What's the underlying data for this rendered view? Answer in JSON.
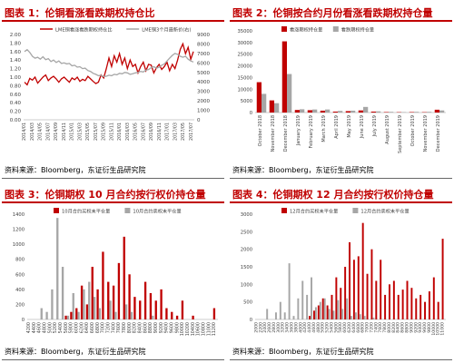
{
  "figures": [
    {
      "title": "图表 1：伦铜看涨看跌期权持仓比"
    },
    {
      "title": "图表 2：伦铜按合约月份看涨看跌期权持仓量"
    },
    {
      "title": "图表 3：伦铜期权 10 月合约按行权价持仓量"
    },
    {
      "title": "图表 4：伦铜期权 12 月合约按行权价持仓量"
    }
  ],
  "source": "资料来源：Bloomberg，东证衍生品研究院",
  "colors": {
    "red": "#C00000",
    "gray": "#A6A6A6",
    "accent": "#C00000"
  },
  "chart_data": [
    {
      "type": "line",
      "series": [
        {
          "name": "LME铜看涨看跌期权持仓比",
          "axis": "left",
          "color": "#C00000",
          "values": [
            0.88,
            0.82,
            0.97,
            0.93,
            1.0,
            0.86,
            0.93,
            1.0,
            1.05,
            0.92,
            0.98,
            1.02,
            0.96,
            0.88,
            0.96,
            1.0,
            0.94,
            0.88,
            0.98,
            0.94,
            1.0,
            0.9,
            0.95,
            0.92,
            1.02,
            0.96,
            0.9,
            0.85,
            0.88,
            1.05,
            0.98,
            1.2,
            1.45,
            1.25,
            1.5,
            1.35,
            1.55,
            1.3,
            1.45,
            1.2,
            1.4,
            1.25,
            1.3,
            1.1,
            1.25,
            1.35,
            1.15,
            1.3,
            1.28,
            1.1,
            1.22,
            1.3,
            1.18,
            1.25,
            1.35,
            1.15,
            1.3,
            1.2,
            1.4,
            1.65,
            1.78,
            1.55,
            1.7,
            1.42,
            1.6
          ]
        },
        {
          "name": "LME铜3个月最新价(右)",
          "axis": "right",
          "color": "#A6A6A6",
          "values": [
            7200,
            7400,
            7100,
            6700,
            6500,
            6600,
            6400,
            6650,
            6350,
            6450,
            6150,
            6300,
            6050,
            6200,
            5950,
            6000,
            5900,
            5950,
            5700,
            5750,
            5550,
            5600,
            5400,
            5450,
            5200,
            5100,
            4900,
            4800,
            4650,
            4700,
            4550,
            4600,
            4700,
            4650,
            4800,
            4750,
            4900,
            4850,
            5000,
            4950,
            4800,
            4850,
            4950,
            5000,
            5100,
            5050,
            5250,
            5300,
            5500,
            5600,
            5450,
            5550,
            5750,
            5900,
            6200,
            6500,
            6800,
            7000,
            6900,
            6700,
            6600,
            6700,
            6400,
            6200,
            6100
          ]
        }
      ],
      "x_labels": [
        "2014/01",
        "2014/03",
        "2014/05",
        "2014/07",
        "2014/09",
        "2014/11",
        "2015/01",
        "2015/03",
        "2015/05",
        "2015/07",
        "2015/09",
        "2015/11",
        "2016/01",
        "2016/03",
        "2016/05",
        "2016/07",
        "2016/09",
        "2016/11",
        "2017/01",
        "2017/03",
        "2017/05",
        "2017/07"
      ],
      "ylim_left": [
        0,
        2.0
      ],
      "yticks_left": [
        "0.00",
        "0.20",
        "0.40",
        "0.60",
        "0.80",
        "1.00",
        "1.20",
        "1.40",
        "1.60",
        "1.80",
        "2.00"
      ],
      "ylim_right": [
        0,
        9000
      ],
      "yticks_right": [
        "0",
        "1000",
        "2000",
        "3000",
        "4000",
        "5000",
        "6000",
        "7000",
        "8000",
        "9000"
      ]
    },
    {
      "type": "bar",
      "categories": [
        "October 2018",
        "November 2018",
        "December 2018",
        "January 2019",
        "February 2019",
        "March 2019",
        "April 2019",
        "May 2019",
        "June 2019",
        "July 2019",
        "August 2019",
        "September 2019",
        "October 2019",
        "November 2019",
        "December 2019"
      ],
      "series": [
        {
          "name": "看涨期权持仓量",
          "color": "#C00000",
          "values": [
            13000,
            5200,
            30500,
            1100,
            1000,
            800,
            400,
            600,
            900,
            400,
            200,
            150,
            200,
            150,
            1200
          ]
        },
        {
          "name": "看跌期权持仓量",
          "color": "#A6A6A6",
          "values": [
            8000,
            4000,
            16500,
            1400,
            1300,
            1300,
            700,
            800,
            2400,
            500,
            300,
            200,
            300,
            300,
            900
          ]
        }
      ],
      "ylim": [
        0,
        35000
      ],
      "yticks": [
        "0",
        "5000",
        "10000",
        "15000",
        "20000",
        "25000",
        "30000",
        "35000"
      ]
    },
    {
      "type": "bar",
      "categories": [
        "4200",
        "4400",
        "4600",
        "4800",
        "5000",
        "5200",
        "5400",
        "5600",
        "5800",
        "6000",
        "6200",
        "6400",
        "6600",
        "6800",
        "7000",
        "7200",
        "7400",
        "7600",
        "7800",
        "8000",
        "8200",
        "8400",
        "8600",
        "8800",
        "9000",
        "9200",
        "9400",
        "9600",
        "9800",
        "10000",
        "10200",
        "10400",
        "10600",
        "10800",
        "11000",
        "11200"
      ],
      "series": [
        {
          "name": "10月合约买权未平仓量",
          "color": "#C00000",
          "values": [
            0,
            0,
            0,
            0,
            0,
            0,
            0,
            50,
            100,
            150,
            450,
            200,
            700,
            400,
            900,
            500,
            450,
            750,
            1100,
            600,
            300,
            250,
            500,
            350,
            250,
            400,
            150,
            100,
            50,
            250,
            0,
            50,
            0,
            0,
            0,
            150
          ]
        },
        {
          "name": "10月合约卖权未平仓量",
          "color": "#A6A6A6",
          "values": [
            0,
            0,
            150,
            100,
            400,
            1350,
            700,
            50,
            350,
            100,
            400,
            500,
            300,
            150,
            0,
            250,
            100,
            0,
            200,
            100,
            0,
            0,
            0,
            50,
            0,
            0,
            0,
            0,
            0,
            0,
            0,
            0,
            0,
            0,
            0,
            0
          ]
        }
      ],
      "ylim": [
        0,
        1400
      ],
      "yticks": [
        "0",
        "200",
        "400",
        "600",
        "800",
        "1000",
        "1200",
        "1400"
      ]
    },
    {
      "type": "bar",
      "categories": [
        "2000",
        "2200",
        "2400",
        "2600",
        "2800",
        "3000",
        "3200",
        "3400",
        "3600",
        "3800",
        "4000",
        "4200",
        "4400",
        "4600",
        "4800",
        "5000",
        "5200",
        "5400",
        "5600",
        "5800",
        "6000",
        "6200",
        "6400",
        "6600",
        "6800",
        "7000",
        "7200",
        "7400",
        "7600",
        "7800",
        "8000",
        "8200",
        "8400",
        "8600",
        "8800",
        "9000",
        "9200",
        "9400",
        "9600",
        "9800",
        "10000",
        "10500",
        "11000"
      ],
      "series": [
        {
          "name": "12月合约买权未平仓量",
          "color": "#C00000",
          "values": [
            0,
            0,
            0,
            0,
            0,
            0,
            0,
            0,
            0,
            0,
            0,
            0,
            100,
            250,
            400,
            600,
            400,
            700,
            1200,
            900,
            1500,
            2200,
            1700,
            1800,
            2750,
            1300,
            2000,
            1100,
            1700,
            700,
            1000,
            1100,
            700,
            850,
            1100,
            900,
            600,
            700,
            500,
            800,
            1200,
            500,
            2300
          ]
        },
        {
          "name": "12月合约卖权未平仓量",
          "color": "#A6A6A6",
          "values": [
            0,
            0,
            300,
            0,
            200,
            500,
            200,
            1600,
            100,
            600,
            1100,
            700,
            1200,
            350,
            500,
            600,
            300,
            250,
            550,
            300,
            600,
            100,
            200,
            150,
            100,
            0,
            50,
            0,
            0,
            0,
            0,
            0,
            0,
            0,
            0,
            0,
            0,
            0,
            0,
            0,
            0,
            0,
            0
          ]
        }
      ],
      "ylim": [
        0,
        3000
      ],
      "yticks": [
        "0",
        "500",
        "1000",
        "1500",
        "2000",
        "2500",
        "3000"
      ]
    }
  ]
}
